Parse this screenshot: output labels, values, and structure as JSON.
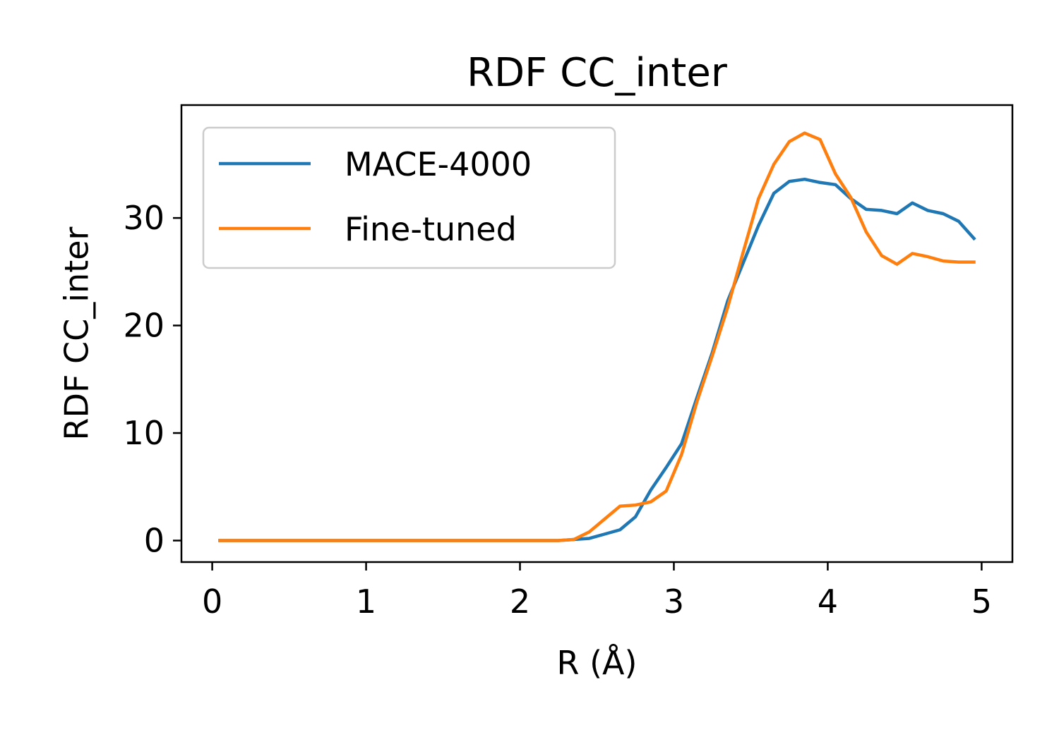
{
  "chart_data": {
    "type": "line",
    "title": "RDF CC_inter",
    "xlabel": "R (Å)",
    "ylabel": "RDF CC_inter",
    "xlim": [
      -0.2,
      5.2
    ],
    "ylim": [
      -2,
      40.5
    ],
    "xticks": [
      0,
      1,
      2,
      3,
      4,
      5
    ],
    "yticks": [
      0,
      10,
      20,
      30
    ],
    "grid": false,
    "legend_position": "top-left",
    "x": [
      0.05,
      0.15,
      0.25,
      0.35,
      0.45,
      0.55,
      0.65,
      0.75,
      0.85,
      0.95,
      1.05,
      1.15,
      1.25,
      1.35,
      1.45,
      1.55,
      1.65,
      1.75,
      1.85,
      1.95,
      2.05,
      2.15,
      2.25,
      2.35,
      2.45,
      2.55,
      2.65,
      2.75,
      2.85,
      2.95,
      3.05,
      3.15,
      3.25,
      3.35,
      3.45,
      3.55,
      3.65,
      3.75,
      3.85,
      3.95,
      4.05,
      4.15,
      4.25,
      4.35,
      4.45,
      4.55,
      4.65,
      4.75,
      4.85,
      4.95
    ],
    "series": [
      {
        "name": "MACE-4000",
        "color": "#1f77b4",
        "values": [
          0,
          0,
          0,
          0,
          0,
          0,
          0,
          0,
          0,
          0,
          0,
          0,
          0,
          0,
          0,
          0,
          0,
          0,
          0,
          0,
          0,
          0,
          0,
          0.1,
          0.2,
          0.6,
          1.0,
          2.2,
          4.7,
          6.8,
          9.0,
          13.3,
          17.5,
          22.3,
          25.8,
          29.3,
          32.3,
          33.4,
          33.6,
          33.3,
          33.1,
          31.8,
          30.8,
          30.7,
          30.4,
          31.4,
          30.7,
          30.4,
          29.7,
          28.1
        ]
      },
      {
        "name": "Fine-tuned",
        "color": "#ff7f0e",
        "values": [
          0,
          0,
          0,
          0,
          0,
          0,
          0,
          0,
          0,
          0,
          0,
          0,
          0,
          0,
          0,
          0,
          0,
          0,
          0,
          0,
          0,
          0,
          0,
          0.1,
          0.8,
          2.0,
          3.2,
          3.3,
          3.6,
          4.6,
          8.0,
          12.9,
          17.2,
          21.7,
          26.8,
          31.8,
          35.0,
          37.1,
          37.9,
          37.3,
          34.1,
          31.9,
          28.7,
          26.5,
          25.7,
          26.7,
          26.4,
          26.0,
          25.9,
          25.9
        ]
      }
    ]
  }
}
